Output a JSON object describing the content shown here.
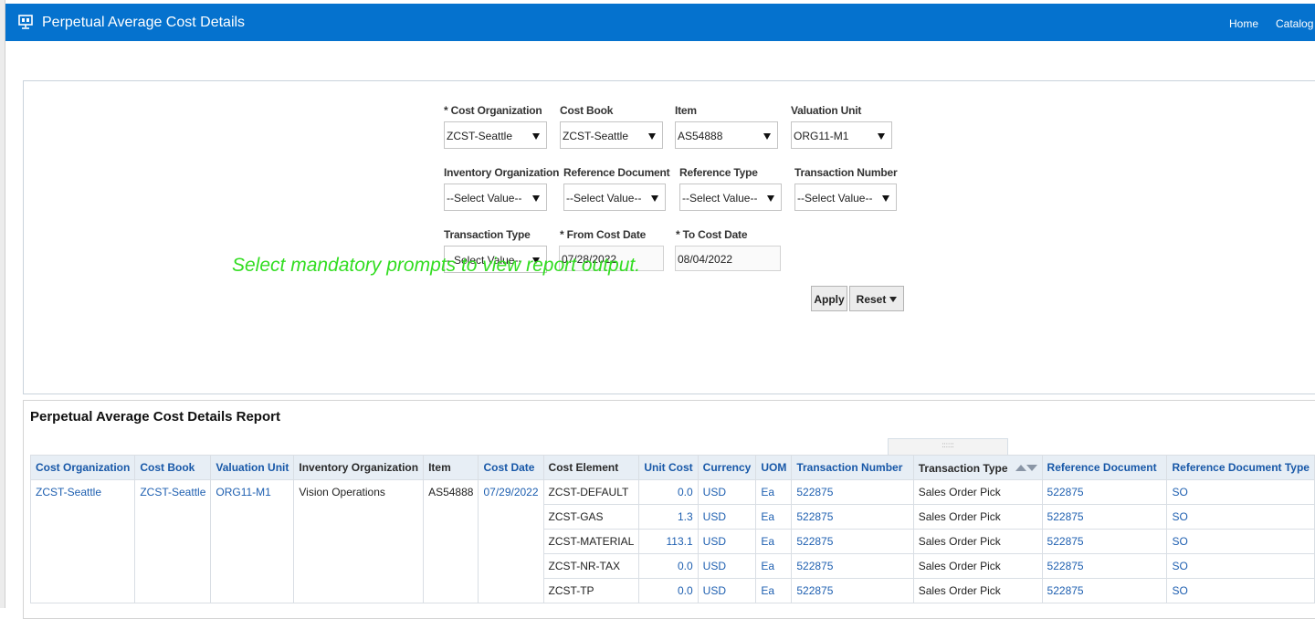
{
  "header": {
    "title": "Perpetual Average Cost Details",
    "nav": [
      "Home",
      "Catalog"
    ],
    "colors": {
      "bar": "#0572ce"
    }
  },
  "prompts": {
    "cost_organization": {
      "label": "* Cost Organization",
      "value": "ZCST-Seattle"
    },
    "cost_book": {
      "label": "Cost Book",
      "value": "ZCST-Seattle"
    },
    "item": {
      "label": "Item",
      "value": "AS54888"
    },
    "valuation_unit": {
      "label": "Valuation Unit",
      "value": "ORG11-M1"
    },
    "inventory_organization": {
      "label": "Inventory Organization",
      "value": "--Select Value--"
    },
    "reference_document": {
      "label": "Reference Document",
      "value": "--Select Value--"
    },
    "reference_type": {
      "label": "Reference Type",
      "value": "--Select Value--"
    },
    "transaction_number": {
      "label": "Transaction Number",
      "value": "--Select Value--"
    },
    "transaction_type": {
      "label": "Transaction Type",
      "value": "--Select Value--"
    },
    "from_cost_date": {
      "label": "* From Cost Date",
      "value": "07/28/2022"
    },
    "to_cost_date": {
      "label": "* To Cost Date",
      "value": "08/04/2022"
    },
    "apply_label": "Apply",
    "reset_label": "Reset",
    "message": "Select mandatory prompts to view report output."
  },
  "report": {
    "title": "Perpetual Average Cost Details Report",
    "drag_handle": "::::::",
    "columns": [
      "Cost Organization",
      "Cost Book",
      "Valuation Unit",
      "Inventory Organization",
      "Item",
      "Cost Date",
      "Cost Element",
      "Unit Cost",
      "Currency",
      "UOM",
      "Transaction Number",
      "Transaction Type",
      "Reference Document",
      "Reference Document Type"
    ],
    "group": {
      "cost_organization": "ZCST-Seattle",
      "cost_book": "ZCST-Seattle",
      "valuation_unit": "ORG11-M1",
      "inventory_organization": "Vision Operations",
      "item": "AS54888",
      "cost_date": "07/29/2022"
    },
    "rows": [
      {
        "cost_element": "ZCST-DEFAULT",
        "unit_cost": "0.0",
        "currency": "USD",
        "uom": "Ea",
        "transaction_number": "522875",
        "transaction_type": "Sales Order Pick",
        "reference_document": "522875",
        "reference_document_type": "SO"
      },
      {
        "cost_element": "ZCST-GAS",
        "unit_cost": "1.3",
        "currency": "USD",
        "uom": "Ea",
        "transaction_number": "522875",
        "transaction_type": "Sales Order Pick",
        "reference_document": "522875",
        "reference_document_type": "SO"
      },
      {
        "cost_element": "ZCST-MATERIAL",
        "unit_cost": "113.1",
        "currency": "USD",
        "uom": "Ea",
        "transaction_number": "522875",
        "transaction_type": "Sales Order Pick",
        "reference_document": "522875",
        "reference_document_type": "SO"
      },
      {
        "cost_element": "ZCST-NR-TAX",
        "unit_cost": "0.0",
        "currency": "USD",
        "uom": "Ea",
        "transaction_number": "522875",
        "transaction_type": "Sales Order Pick",
        "reference_document": "522875",
        "reference_document_type": "SO"
      },
      {
        "cost_element": "ZCST-TP",
        "unit_cost": "0.0",
        "currency": "USD",
        "uom": "Ea",
        "transaction_number": "522875",
        "transaction_type": "Sales Order Pick",
        "reference_document": "522875",
        "reference_document_type": "SO"
      }
    ]
  }
}
